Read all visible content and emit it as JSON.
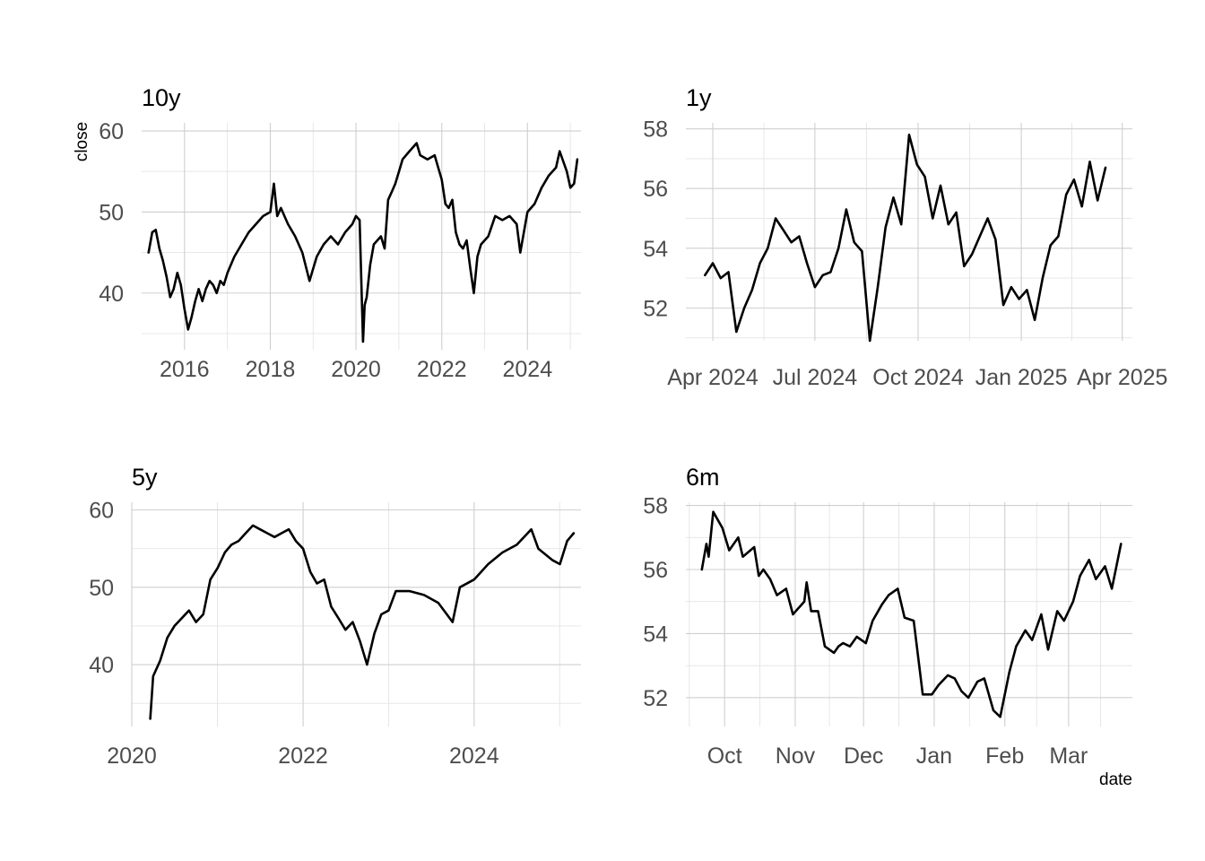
{
  "ylabel": "close",
  "xlabel": "date",
  "line_color": "#000000",
  "grid_color": "#cfcfcf",
  "chart_data": [
    {
      "type": "line",
      "title": "10y",
      "xlim": [
        "2015-01-01",
        "2025-04-01"
      ],
      "ylim": [
        33,
        61
      ],
      "x_ticks": [
        "2016-01-01",
        "2018-01-01",
        "2020-01-01",
        "2022-01-01",
        "2024-01-01"
      ],
      "x_tick_labels": [
        "2016",
        "2018",
        "2020",
        "2022",
        "2024"
      ],
      "y_ticks": [
        40,
        50,
        60
      ],
      "y_tick_labels": [
        "40",
        "50",
        "60"
      ],
      "grid": true,
      "series": [
        {
          "x": [
            "2015-03-01",
            "2015-04-01",
            "2015-05-01",
            "2015-06-01",
            "2015-07-01",
            "2015-08-01",
            "2015-09-01",
            "2015-10-01",
            "2015-11-01",
            "2015-12-01",
            "2016-01-01",
            "2016-02-01",
            "2016-03-01",
            "2016-04-01",
            "2016-05-01",
            "2016-06-01",
            "2016-07-01",
            "2016-08-01",
            "2016-09-01",
            "2016-10-01",
            "2016-11-01",
            "2016-12-01",
            "2017-01-01",
            "2017-03-01",
            "2017-05-01",
            "2017-07-01",
            "2017-09-01",
            "2017-11-01",
            "2018-01-01",
            "2018-02-01",
            "2018-03-01",
            "2018-04-01",
            "2018-06-01",
            "2018-08-01",
            "2018-10-01",
            "2018-12-01",
            "2019-02-01",
            "2019-04-01",
            "2019-06-01",
            "2019-08-01",
            "2019-10-01",
            "2019-12-01",
            "2020-01-01",
            "2020-02-01",
            "2020-03-01",
            "2020-03-15",
            "2020-04-01",
            "2020-05-01",
            "2020-06-01",
            "2020-08-01",
            "2020-09-01",
            "2020-10-01",
            "2020-11-01",
            "2020-12-01",
            "2021-01-01",
            "2021-02-01",
            "2021-04-01",
            "2021-06-01",
            "2021-07-01",
            "2021-09-01",
            "2021-11-01",
            "2021-12-01",
            "2022-01-01",
            "2022-02-01",
            "2022-03-01",
            "2022-04-01",
            "2022-05-01",
            "2022-06-01",
            "2022-07-01",
            "2022-08-01",
            "2022-09-01",
            "2022-10-01",
            "2022-11-01",
            "2022-12-01",
            "2023-02-01",
            "2023-04-01",
            "2023-06-01",
            "2023-08-01",
            "2023-10-01",
            "2023-11-01",
            "2024-01-01",
            "2024-03-01",
            "2024-05-01",
            "2024-07-01",
            "2024-09-01",
            "2024-10-01",
            "2024-12-01",
            "2025-01-01",
            "2025-02-01",
            "2025-03-01"
          ],
          "y": [
            45.0,
            47.5,
            47.8,
            45.5,
            44.0,
            42.0,
            39.5,
            40.5,
            42.5,
            41.0,
            38.0,
            35.5,
            37.0,
            39.0,
            40.5,
            39.0,
            40.5,
            41.5,
            41.0,
            40.0,
            41.5,
            41.0,
            42.5,
            44.5,
            46.0,
            47.5,
            48.5,
            49.5,
            50.0,
            53.5,
            49.5,
            50.5,
            48.5,
            47.0,
            45.0,
            41.5,
            44.5,
            46.0,
            47.0,
            46.0,
            47.5,
            48.5,
            49.5,
            49.0,
            34.0,
            38.5,
            39.5,
            43.5,
            46.0,
            47.0,
            45.5,
            51.5,
            52.5,
            53.5,
            55.0,
            56.5,
            57.5,
            58.5,
            57.0,
            56.5,
            57.0,
            55.5,
            54.0,
            51.0,
            50.5,
            51.5,
            47.5,
            46.0,
            45.5,
            46.5,
            43.0,
            40.0,
            44.5,
            46.0,
            47.0,
            49.5,
            49.0,
            49.5,
            48.5,
            45.0,
            50.0,
            51.0,
            53.0,
            54.5,
            55.5,
            57.5,
            55.0,
            53.0,
            53.5,
            56.5
          ]
        }
      ]
    },
    {
      "type": "line",
      "title": "1y",
      "xlim": [
        "2024-03-08",
        "2025-04-10"
      ],
      "ylim": [
        50.9,
        58.2
      ],
      "x_ticks": [
        "2024-04-01",
        "2024-07-01",
        "2024-10-01",
        "2025-01-01",
        "2025-04-01"
      ],
      "x_tick_labels": [
        "Apr 2024",
        "Jul 2024",
        "Oct 2024",
        "Jan 2025",
        "Apr 2025"
      ],
      "y_ticks": [
        52,
        54,
        56,
        58
      ],
      "y_tick_labels": [
        "52",
        "54",
        "56",
        "58"
      ],
      "grid": true,
      "series": [
        {
          "x": [
            "2024-03-25",
            "2024-04-01",
            "2024-04-08",
            "2024-04-15",
            "2024-04-22",
            "2024-04-29",
            "2024-05-06",
            "2024-05-13",
            "2024-05-20",
            "2024-05-27",
            "2024-06-03",
            "2024-06-10",
            "2024-06-17",
            "2024-06-24",
            "2024-07-01",
            "2024-07-08",
            "2024-07-15",
            "2024-07-22",
            "2024-07-29",
            "2024-08-05",
            "2024-08-12",
            "2024-08-19",
            "2024-08-26",
            "2024-09-02",
            "2024-09-09",
            "2024-09-16",
            "2024-09-23",
            "2024-09-30",
            "2024-10-07",
            "2024-10-14",
            "2024-10-21",
            "2024-10-28",
            "2024-11-04",
            "2024-11-11",
            "2024-11-18",
            "2024-11-25",
            "2024-12-02",
            "2024-12-09",
            "2024-12-16",
            "2024-12-23",
            "2024-12-30",
            "2025-01-06",
            "2025-01-13",
            "2025-01-20",
            "2025-01-27",
            "2025-02-03",
            "2025-02-10",
            "2025-02-17",
            "2025-02-24",
            "2025-03-03",
            "2025-03-10",
            "2025-03-17"
          ],
          "y": [
            53.1,
            53.5,
            53.0,
            53.2,
            51.2,
            52.0,
            52.6,
            53.5,
            54.0,
            55.0,
            54.6,
            54.2,
            54.4,
            53.5,
            52.7,
            53.1,
            53.2,
            54.0,
            55.3,
            54.2,
            53.9,
            50.9,
            52.7,
            54.7,
            55.7,
            54.8,
            57.8,
            56.8,
            56.4,
            55.0,
            56.1,
            54.8,
            55.2,
            53.4,
            53.8,
            54.4,
            55.0,
            54.3,
            52.1,
            52.7,
            52.3,
            52.6,
            51.6,
            53.0,
            54.1,
            54.4,
            55.8,
            56.3,
            55.4,
            56.9,
            55.6,
            56.7
          ]
        }
      ]
    },
    {
      "type": "line",
      "title": "5y",
      "xlim": [
        "2020-01-01",
        "2025-04-01"
      ],
      "ylim": [
        32,
        61
      ],
      "x_ticks": [
        "2020-01-01",
        "2022-01-01",
        "2024-01-01"
      ],
      "x_tick_labels": [
        "2020",
        "2022",
        "2024"
      ],
      "y_ticks": [
        40,
        50,
        60
      ],
      "y_tick_labels": [
        "40",
        "50",
        "60"
      ],
      "grid": true,
      "series": [
        {
          "x": [
            "2020-03-20",
            "2020-04-01",
            "2020-05-01",
            "2020-06-01",
            "2020-07-01",
            "2020-08-01",
            "2020-09-01",
            "2020-10-01",
            "2020-11-01",
            "2020-12-01",
            "2021-01-01",
            "2021-02-01",
            "2021-03-01",
            "2021-04-01",
            "2021-05-01",
            "2021-06-01",
            "2021-07-01",
            "2021-08-01",
            "2021-09-01",
            "2021-10-01",
            "2021-11-01",
            "2021-12-01",
            "2022-01-01",
            "2022-02-01",
            "2022-03-01",
            "2022-04-01",
            "2022-05-01",
            "2022-06-01",
            "2022-07-01",
            "2022-08-01",
            "2022-09-01",
            "2022-10-01",
            "2022-11-01",
            "2022-12-01",
            "2023-01-01",
            "2023-02-01",
            "2023-04-01",
            "2023-06-01",
            "2023-08-01",
            "2023-10-01",
            "2023-11-01",
            "2024-01-01",
            "2024-03-01",
            "2024-05-01",
            "2024-07-01",
            "2024-09-01",
            "2024-10-01",
            "2024-12-01",
            "2025-01-01",
            "2025-02-01",
            "2025-03-01"
          ],
          "y": [
            33.0,
            38.5,
            40.5,
            43.5,
            45.0,
            46.0,
            47.0,
            45.5,
            46.5,
            51.0,
            52.5,
            54.5,
            55.5,
            56.0,
            57.0,
            58.0,
            57.5,
            57.0,
            56.5,
            57.0,
            57.5,
            56.0,
            55.0,
            52.0,
            50.5,
            51.0,
            47.5,
            46.0,
            44.5,
            45.5,
            43.0,
            40.0,
            44.0,
            46.5,
            47.0,
            49.5,
            49.5,
            49.0,
            48.0,
            45.5,
            50.0,
            51.0,
            53.0,
            54.5,
            55.5,
            57.5,
            55.0,
            53.5,
            53.0,
            56.0,
            57.0
          ]
        }
      ]
    },
    {
      "type": "line",
      "title": "6m",
      "xlim": [
        "2024-09-14",
        "2025-03-29"
      ],
      "ylim": [
        51.1,
        58.1
      ],
      "x_ticks": [
        "2024-10-01",
        "2024-11-01",
        "2024-12-01",
        "2025-01-01",
        "2025-02-01",
        "2025-03-01"
      ],
      "x_tick_labels": [
        "Oct",
        "Nov",
        "Dec",
        "Jan",
        "Feb",
        "Mar"
      ],
      "y_ticks": [
        52,
        54,
        56,
        58
      ],
      "y_tick_labels": [
        "52",
        "54",
        "56",
        "58"
      ],
      "grid": true,
      "series": [
        {
          "x": [
            "2024-09-21",
            "2024-09-23",
            "2024-09-24",
            "2024-09-26",
            "2024-09-30",
            "2024-10-03",
            "2024-10-07",
            "2024-10-09",
            "2024-10-14",
            "2024-10-16",
            "2024-10-18",
            "2024-10-21",
            "2024-10-24",
            "2024-10-28",
            "2024-10-31",
            "2024-11-05",
            "2024-11-06",
            "2024-11-08",
            "2024-11-11",
            "2024-11-14",
            "2024-11-18",
            "2024-11-20",
            "2024-11-22",
            "2024-11-25",
            "2024-11-28",
            "2024-12-02",
            "2024-12-05",
            "2024-12-09",
            "2024-12-12",
            "2024-12-16",
            "2024-12-19",
            "2024-12-23",
            "2024-12-27",
            "2024-12-31",
            "2025-01-03",
            "2025-01-07",
            "2025-01-10",
            "2025-01-13",
            "2025-01-16",
            "2025-01-20",
            "2025-01-23",
            "2025-01-27",
            "2025-01-30",
            "2025-02-03",
            "2025-02-06",
            "2025-02-10",
            "2025-02-13",
            "2025-02-17",
            "2025-02-20",
            "2025-02-24",
            "2025-02-27",
            "2025-03-03",
            "2025-03-06",
            "2025-03-10",
            "2025-03-13",
            "2025-03-17",
            "2025-03-20",
            "2025-03-24"
          ],
          "y": [
            56.0,
            56.8,
            56.4,
            57.8,
            57.3,
            56.6,
            57.0,
            56.4,
            56.7,
            55.8,
            56.0,
            55.7,
            55.2,
            55.4,
            54.6,
            55.0,
            55.6,
            54.7,
            54.7,
            53.6,
            53.4,
            53.6,
            53.7,
            53.6,
            53.9,
            53.7,
            54.4,
            54.9,
            55.2,
            55.4,
            54.5,
            54.4,
            52.1,
            52.1,
            52.4,
            52.7,
            52.6,
            52.2,
            52.0,
            52.5,
            52.6,
            51.6,
            51.4,
            52.8,
            53.6,
            54.1,
            53.8,
            54.6,
            53.5,
            54.7,
            54.4,
            55.0,
            55.8,
            56.3,
            55.7,
            56.1,
            55.4,
            56.8
          ]
        }
      ]
    }
  ]
}
